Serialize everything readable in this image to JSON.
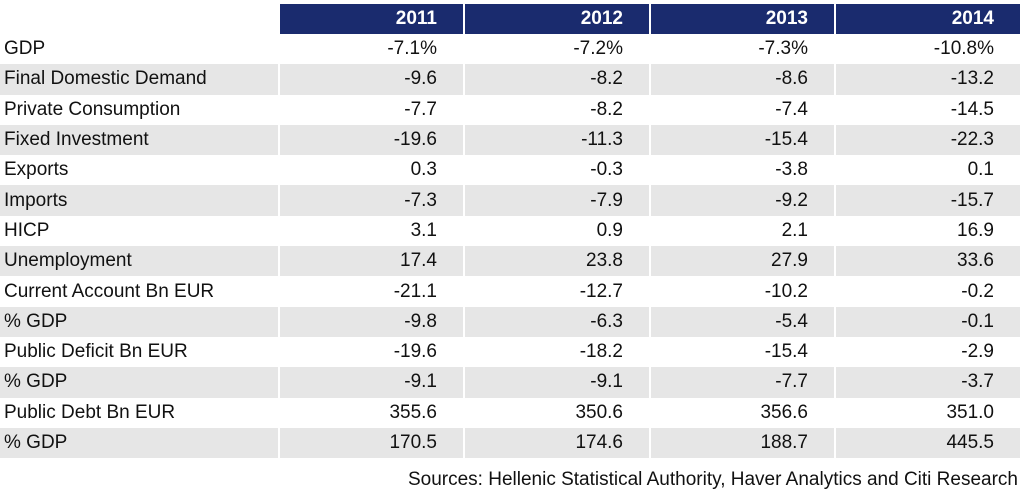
{
  "chart_data": {
    "type": "table",
    "columns": [
      "2011",
      "2012",
      "2013",
      "2014"
    ],
    "rows": [
      {
        "label": "GDP",
        "values": [
          "-7.1%",
          "-7.2%",
          "-7.3%",
          "-10.8%"
        ]
      },
      {
        "label": "Final Domestic Demand",
        "values": [
          "-9.6",
          "-8.2",
          "-8.6",
          "-13.2"
        ]
      },
      {
        "label": "Private Consumption",
        "values": [
          "-7.7",
          "-8.2",
          "-7.4",
          "-14.5"
        ]
      },
      {
        "label": "Fixed Investment",
        "values": [
          "-19.6",
          "-11.3",
          "-15.4",
          "-22.3"
        ]
      },
      {
        "label": "Exports",
        "values": [
          "0.3",
          "-0.3",
          "-3.8",
          "0.1"
        ]
      },
      {
        "label": "Imports",
        "values": [
          "-7.3",
          "-7.9",
          "-9.2",
          "-15.7"
        ]
      },
      {
        "label": "HICP",
        "values": [
          "3.1",
          "0.9",
          "2.1",
          "16.9"
        ]
      },
      {
        "label": "Unemployment",
        "values": [
          "17.4",
          "23.8",
          "27.9",
          "33.6"
        ]
      },
      {
        "label": "Current Account Bn EUR",
        "values": [
          "-21.1",
          "-12.7",
          "-10.2",
          "-0.2"
        ]
      },
      {
        "label": "% GDP",
        "values": [
          "-9.8",
          "-6.3",
          "-5.4",
          "-0.1"
        ]
      },
      {
        "label": "Public Deficit Bn EUR",
        "values": [
          "-19.6",
          "-18.2",
          "-15.4",
          "-2.9"
        ]
      },
      {
        "label": "% GDP",
        "values": [
          "-9.1",
          "-9.1",
          "-7.7",
          "-3.7"
        ]
      },
      {
        "label": "Public Debt Bn EUR",
        "values": [
          "355.6",
          "350.6",
          "356.6",
          "351.0"
        ]
      },
      {
        "label": "% GDP",
        "values": [
          "170.5",
          "174.6",
          "188.7",
          "445.5"
        ]
      }
    ],
    "source": "Sources: Hellenic Statistical Authority, Haver Analytics and Citi Research"
  },
  "colors": {
    "header_bg": "#1a2b6e",
    "header_text": "#ffffff",
    "stripe": "#e6e6e6"
  }
}
